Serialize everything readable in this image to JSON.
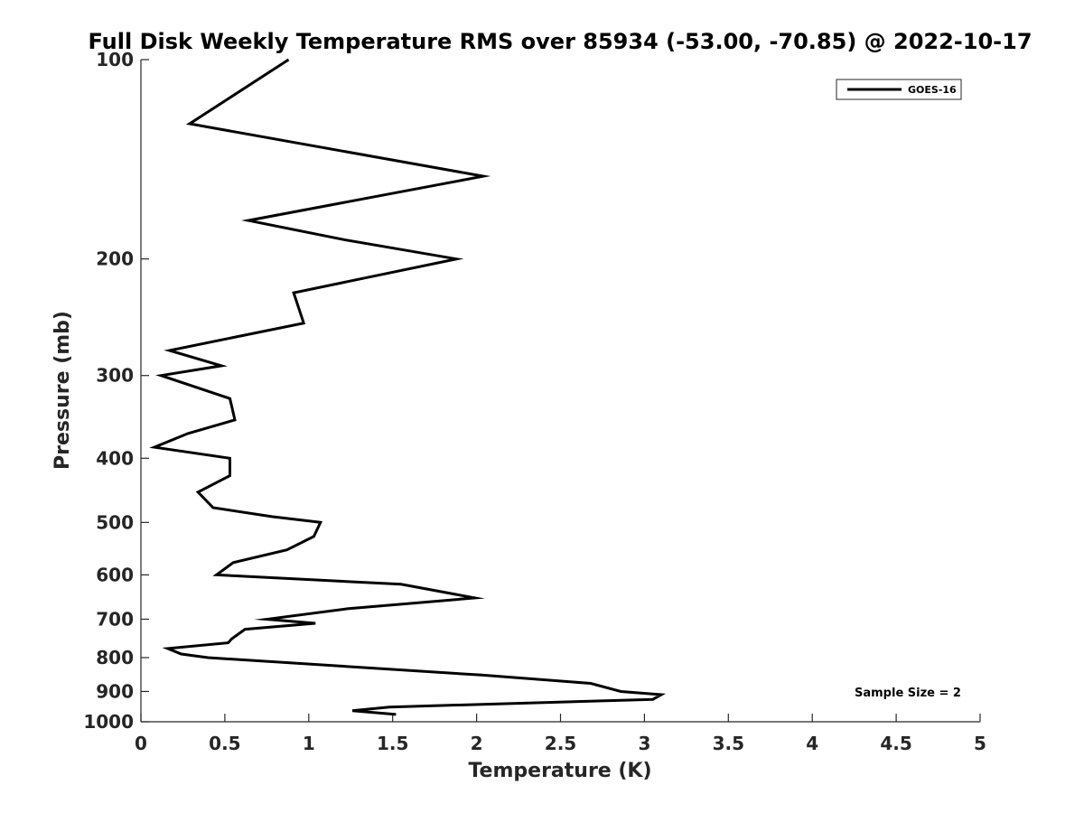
{
  "chart_data": {
    "type": "line",
    "title": "Full Disk Weekly Temperature RMS over 85934 (-53.00, -70.85) @ 2022-10-17",
    "xlabel": "Temperature (K)",
    "ylabel": "Pressure (mb)",
    "xlim": [
      0,
      5
    ],
    "ylim": [
      100,
      1000
    ],
    "y_scale": "log",
    "y_reversed": true,
    "x_ticks": [
      "0",
      "0.5",
      "1",
      "1.5",
      "2",
      "2.5",
      "3",
      "3.5",
      "4",
      "4.5",
      "5"
    ],
    "y_ticks": [
      "100",
      "200",
      "300",
      "400",
      "500",
      "600",
      "700",
      "800",
      "900",
      "1000"
    ],
    "grid": false,
    "legend_position": "top-right",
    "series": [
      {
        "name": "GOES-16",
        "color": "#000000",
        "x": [
          0.88,
          0.29,
          2.04,
          0.64,
          1.21,
          1.88,
          0.91,
          0.97,
          0.17,
          0.48,
          0.12,
          0.53,
          0.56,
          0.28,
          0.08,
          0.53,
          0.53,
          0.34,
          0.43,
          0.78,
          1.07,
          1.03,
          0.87,
          0.55,
          0.45,
          1.55,
          1.99,
          1.23,
          0.75,
          1.04,
          0.62,
          0.54,
          0.52,
          0.16,
          0.24,
          0.4,
          2.03,
          2.68,
          2.86,
          3.1,
          3.05,
          1.48,
          1.26,
          1.52
        ],
        "y": [
          100,
          125,
          150,
          175,
          187,
          200,
          225,
          250,
          275,
          290,
          300,
          325,
          350,
          367,
          385,
          400,
          425,
          450,
          475,
          490,
          500,
          525,
          550,
          575,
          600,
          620,
          650,
          675,
          700,
          710,
          725,
          750,
          760,
          775,
          790,
          800,
          850,
          875,
          900,
          910,
          925,
          950,
          962,
          975
        ]
      }
    ],
    "annotations": [
      "Sample Size = 2"
    ]
  }
}
